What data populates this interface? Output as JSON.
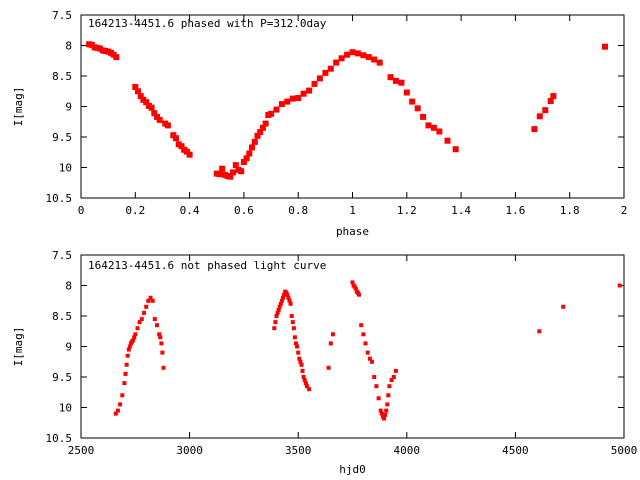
{
  "chart_data": [
    {
      "type": "scatter",
      "title": "164213-4451.6 phased with P=312.0day",
      "xlabel": "phase",
      "ylabel": "I[mag]",
      "xlim": [
        0,
        2
      ],
      "ylim": [
        7.5,
        10.5
      ],
      "y_inverted": true,
      "xticks": [
        "0",
        "0.2",
        "0.4",
        "0.6",
        "0.8",
        "1",
        "1.2",
        "1.4",
        "1.6",
        "1.8",
        "2"
      ],
      "yticks": [
        "7.5",
        "8",
        "8.5",
        "9",
        "9.5",
        "10",
        "10.5"
      ],
      "marker_color": "#ff0000",
      "grid": false,
      "series": [
        {
          "x": [
            0.03,
            0.04,
            0.05,
            0.06,
            0.07,
            0.08,
            0.09,
            0.1,
            0.11,
            0.12,
            0.13,
            0.2,
            0.21,
            0.22,
            0.23,
            0.24,
            0.25,
            0.26,
            0.27,
            0.28,
            0.29,
            0.31,
            0.32,
            0.34,
            0.35,
            0.36,
            0.37,
            0.38,
            0.39,
            0.4,
            0.5,
            0.51,
            0.52,
            0.53,
            0.54,
            0.55,
            0.56,
            0.57,
            0.58,
            0.59,
            0.6,
            0.61,
            0.62,
            0.63,
            0.64,
            0.65,
            0.66,
            0.67,
            0.68,
            0.69,
            0.7,
            0.72,
            0.74,
            0.76,
            0.78,
            0.8,
            0.82,
            0.84,
            0.86,
            0.88,
            0.9,
            0.92,
            0.94,
            0.96,
            0.98,
            1.0,
            1.02,
            1.04,
            1.06,
            1.08,
            1.1,
            1.14,
            1.16,
            1.18,
            1.2,
            1.22,
            1.24,
            1.26,
            1.28,
            1.3,
            1.32,
            1.35,
            1.38,
            1.67,
            1.69,
            1.71,
            1.73,
            1.74,
            1.93
          ],
          "y": [
            7.98,
            7.99,
            8.03,
            8.04,
            8.05,
            8.08,
            8.09,
            8.1,
            8.12,
            8.15,
            8.19,
            8.68,
            8.75,
            8.83,
            8.89,
            8.93,
            8.99,
            9.02,
            9.11,
            9.17,
            9.22,
            9.28,
            9.31,
            9.47,
            9.52,
            9.62,
            9.65,
            9.71,
            9.74,
            9.79,
            10.1,
            10.11,
            10.02,
            10.12,
            10.14,
            10.15,
            10.08,
            9.96,
            10.04,
            10.06,
            9.91,
            9.85,
            9.77,
            9.67,
            9.58,
            9.48,
            9.42,
            9.35,
            9.28,
            9.14,
            9.12,
            9.05,
            8.96,
            8.92,
            8.87,
            8.86,
            8.79,
            8.74,
            8.63,
            8.54,
            8.45,
            8.38,
            8.28,
            8.21,
            8.15,
            8.11,
            8.13,
            8.16,
            8.19,
            8.23,
            8.28,
            8.52,
            8.58,
            8.61,
            8.77,
            8.92,
            9.03,
            9.17,
            9.31,
            9.35,
            9.41,
            9.56,
            9.7,
            9.37,
            9.16,
            9.06,
            8.91,
            8.83,
            8.02
          ]
        }
      ]
    },
    {
      "type": "scatter",
      "title": "164213-4451.6 not phased light curve",
      "xlabel": "hjd0",
      "ylabel": "I[mag]",
      "xlim": [
        2500,
        5000
      ],
      "ylim": [
        7.5,
        10.5
      ],
      "y_inverted": true,
      "xticks": [
        "2500",
        "3000",
        "3500",
        "4000",
        "4500",
        "5000"
      ],
      "yticks": [
        "7.5",
        "8",
        "8.5",
        "9",
        "9.5",
        "10",
        "10.5"
      ],
      "marker_color": "#ff0000",
      "grid": false,
      "series": [
        {
          "x": [
            2660,
            2670,
            2680,
            2690,
            2700,
            2705,
            2710,
            2715,
            2720,
            2725,
            2730,
            2735,
            2740,
            2745,
            2750,
            2760,
            2770,
            2780,
            2790,
            2800,
            2810,
            2820,
            2830,
            2840,
            2850,
            2860,
            2865,
            2870,
            2875,
            2880,
            3390,
            3395,
            3400,
            3405,
            3410,
            3415,
            3420,
            3425,
            3430,
            3435,
            3440,
            3445,
            3450,
            3455,
            3460,
            3465,
            3470,
            3475,
            3480,
            3485,
            3490,
            3495,
            3500,
            3505,
            3510,
            3515,
            3520,
            3525,
            3530,
            3535,
            3540,
            3550,
            3640,
            3650,
            3660,
            3750,
            3755,
            3760,
            3765,
            3770,
            3775,
            3780,
            3790,
            3800,
            3810,
            3820,
            3830,
            3840,
            3850,
            3860,
            3870,
            3880,
            3885,
            3890,
            3895,
            3900,
            3905,
            3910,
            3915,
            3920,
            3930,
            3940,
            3950
          ],
          "y": [
            10.1,
            10.05,
            9.95,
            9.8,
            9.6,
            9.45,
            9.3,
            9.15,
            9.05,
            9.0,
            8.95,
            8.92,
            8.9,
            8.85,
            8.8,
            8.7,
            8.6,
            8.55,
            8.45,
            8.35,
            8.25,
            8.2,
            8.25,
            8.55,
            8.65,
            8.8,
            8.85,
            8.95,
            9.1,
            9.35,
            8.7,
            8.6,
            8.5,
            8.45,
            8.4,
            8.35,
            8.3,
            8.25,
            8.2,
            8.15,
            8.1,
            8.12,
            8.15,
            8.2,
            8.25,
            8.3,
            8.5,
            8.6,
            8.7,
            8.85,
            8.95,
            9.0,
            9.1,
            9.2,
            9.25,
            9.3,
            9.4,
            9.5,
            9.55,
            9.6,
            9.65,
            9.7,
            9.35,
            8.95,
            8.8,
            7.95,
            8.0,
            8.02,
            8.05,
            8.1,
            8.12,
            8.15,
            8.65,
            8.8,
            8.95,
            9.1,
            9.2,
            9.25,
            9.5,
            9.65,
            9.85,
            10.05,
            10.1,
            10.15,
            10.18,
            10.12,
            10.05,
            9.95,
            9.8,
            9.65,
            9.55,
            9.5,
            9.4
          ],
          "marker": "small"
        },
        {
          "x": [
            4610,
            4720,
            4980
          ],
          "y": [
            8.75,
            8.35,
            8.0
          ]
        }
      ]
    }
  ]
}
